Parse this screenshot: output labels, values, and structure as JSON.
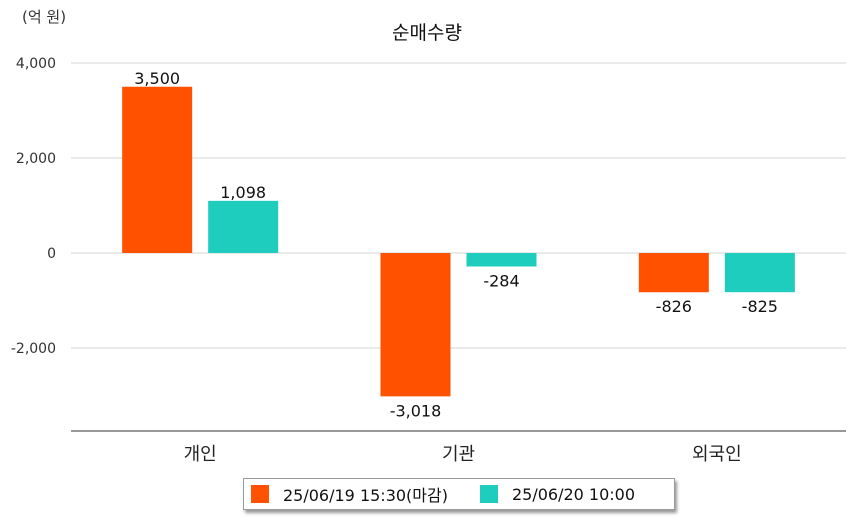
{
  "chart_data": {
    "type": "bar",
    "title": "순매수량",
    "unit_label": "(억 원)",
    "categories": [
      "개인",
      "기관",
      "외국인"
    ],
    "series": [
      {
        "name": "25/06/19 15:30(마감)",
        "color": "#FF5100",
        "values": [
          3500,
          -3018,
          -826
        ],
        "labels": [
          "3,500",
          "-3,018",
          "-826"
        ]
      },
      {
        "name": "25/06/20 10:00",
        "color": "#1ECDBD",
        "values": [
          1098,
          -284,
          -825
        ],
        "labels": [
          "1,098",
          "-284",
          "-825"
        ]
      }
    ],
    "yticks": [
      4000,
      2000,
      0,
      -2000
    ],
    "ytick_labels": [
      "4,000",
      "2,000",
      "0",
      "-2,000"
    ],
    "ylim": [
      -3800,
      4000
    ],
    "grid": true,
    "legend_position": "bottom"
  }
}
